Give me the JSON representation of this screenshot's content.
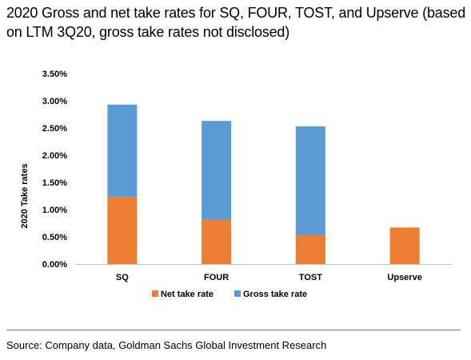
{
  "title": "2020 Gross and net take rates for SQ, FOUR, TOST, and Upserve (based on LTM 3Q20, gross take rates not disclosed)",
  "source": "Source: Company data, Goldman Sachs Global Investment Research",
  "chart_data": {
    "type": "bar",
    "stacked": true,
    "categories": [
      "SQ",
      "FOUR",
      "TOST",
      "Upserve"
    ],
    "series": [
      {
        "name": "Net take rate",
        "color": "#ED7D31",
        "values": [
          1.23,
          0.81,
          0.53,
          0.67
        ]
      },
      {
        "name": "Gross take rate",
        "color": "#5B9BD5",
        "values": [
          1.7,
          1.82,
          2.0,
          0.0
        ]
      }
    ],
    "totals": [
      2.93,
      2.63,
      2.53,
      0.67
    ],
    "ylabel": "2020 Take rates",
    "xlabel": "",
    "ylim": [
      0,
      3.5
    ],
    "yticks": [
      "0.00%",
      "0.50%",
      "1.00%",
      "1.50%",
      "2.00%",
      "2.50%",
      "3.00%",
      "3.50%"
    ],
    "ytick_values": [
      0,
      0.5,
      1.0,
      1.5,
      2.0,
      2.5,
      3.0,
      3.5
    ],
    "grid": false,
    "legend_position": "bottom"
  }
}
